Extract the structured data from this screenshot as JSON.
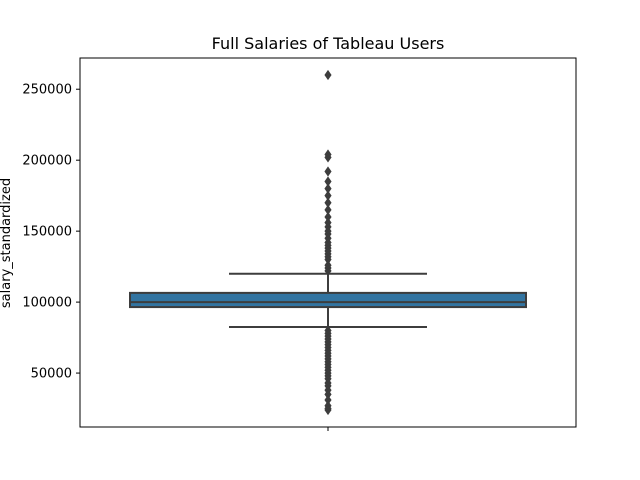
{
  "chart_data": {
    "type": "box",
    "title": "Full Salaries of Tableau Users",
    "xlabel": "",
    "ylabel": "salary_standardized",
    "ylim": [
      12000,
      272000
    ],
    "yticks": [
      50000,
      100000,
      150000,
      200000,
      250000
    ],
    "ytick_labels": [
      "50000",
      "100000",
      "150000",
      "200000",
      "250000"
    ],
    "grid": false,
    "legend": "none",
    "box_color": "#3274a1",
    "line_color": "#3d3d3d",
    "box": {
      "q1": 96500,
      "median": 100000,
      "q3": 106500,
      "whisker_low": 82500,
      "whisker_high": 120000
    },
    "outliers_high": [
      122000,
      124000,
      126000,
      130000,
      132000,
      134000,
      136000,
      138000,
      140000,
      142000,
      145000,
      148000,
      150000,
      153000,
      156000,
      160000,
      165000,
      170000,
      175000,
      180000,
      185000,
      192000,
      202000,
      204000,
      260000
    ],
    "outliers_low": [
      80000,
      78000,
      76000,
      74000,
      72000,
      70000,
      68000,
      66000,
      64000,
      62000,
      60000,
      58000,
      56000,
      54000,
      52000,
      50000,
      48000,
      46000,
      43000,
      41000,
      38000,
      35000,
      31000,
      27000,
      25000,
      24000
    ]
  }
}
